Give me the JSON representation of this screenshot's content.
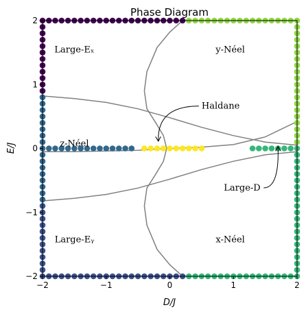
{
  "chart_data": {
    "type": "scatter",
    "title": "Phase Diagram",
    "xlabel": "D/J",
    "ylabel": "E/J",
    "xlim": [
      -2,
      2
    ],
    "ylim": [
      -2,
      2
    ],
    "xticks": [
      -2,
      -1,
      0,
      1,
      2
    ],
    "yticks": [
      -2,
      -1,
      0,
      1,
      2
    ],
    "grid": false,
    "region_labels": [
      {
        "text": "Large-Eₓ",
        "x": -1.5,
        "y": 1.5
      },
      {
        "text": "y-Néel",
        "x": 0.95,
        "y": 1.5
      },
      {
        "text": "z-Néel",
        "x": -1.5,
        "y": 0.03
      },
      {
        "text": "Large-Eᵧ",
        "x": -1.5,
        "y": -1.47
      },
      {
        "text": "x-Néel",
        "x": 0.95,
        "y": -1.47
      }
    ],
    "annotations": [
      {
        "text": "Haldane",
        "x": 0.5,
        "y": 0.62,
        "arrow_to": [
          -0.18,
          0.08
        ]
      },
      {
        "text": "Large-D",
        "x": 0.85,
        "y": -0.66,
        "arrow_to": [
          1.7,
          0.0
        ]
      }
    ],
    "boundaries": [
      {
        "points": [
          [
            -2.0,
            0.82
          ],
          [
            -1.5,
            0.78
          ],
          [
            -1.0,
            0.72
          ],
          [
            -0.5,
            0.62
          ],
          [
            0.0,
            0.48
          ],
          [
            0.5,
            0.33
          ],
          [
            1.0,
            0.2
          ],
          [
            1.5,
            0.1
          ],
          [
            2.0,
            0.05
          ]
        ]
      },
      {
        "points": [
          [
            -2.0,
            -0.82
          ],
          [
            -1.5,
            -0.78
          ],
          [
            -1.0,
            -0.72
          ],
          [
            -0.5,
            -0.62
          ],
          [
            0.0,
            -0.48
          ],
          [
            0.5,
            -0.33
          ],
          [
            1.0,
            -0.2
          ],
          [
            1.5,
            -0.1
          ],
          [
            2.0,
            -0.05
          ]
        ]
      },
      {
        "points": [
          [
            -2.0,
            -0.05
          ],
          [
            -1.5,
            -0.05
          ],
          [
            -1.0,
            -0.04
          ],
          [
            -0.5,
            -0.03
          ],
          [
            0.0,
            0.0
          ],
          [
            0.5,
            0.02
          ],
          [
            1.0,
            0.06
          ],
          [
            1.5,
            0.18
          ],
          [
            2.0,
            0.42
          ]
        ]
      },
      {
        "points": [
          [
            0.2,
            2.0
          ],
          [
            0.0,
            1.82
          ],
          [
            -0.2,
            1.58
          ],
          [
            -0.36,
            1.2
          ],
          [
            -0.4,
            0.9
          ],
          [
            -0.36,
            0.62
          ],
          [
            -0.22,
            0.4
          ],
          [
            -0.1,
            0.2
          ],
          [
            -0.05,
            0.0
          ],
          [
            -0.1,
            -0.2
          ],
          [
            -0.22,
            -0.4
          ],
          [
            -0.36,
            -0.62
          ],
          [
            -0.4,
            -0.9
          ],
          [
            -0.36,
            -1.2
          ],
          [
            -0.2,
            -1.58
          ],
          [
            0.0,
            -1.82
          ],
          [
            0.2,
            -2.0
          ]
        ]
      }
    ],
    "series": [
      {
        "color": "#440154",
        "points": [
          [
            -2.0,
            2.0
          ],
          [
            -2.0,
            1.9
          ],
          [
            -2.0,
            1.8
          ],
          [
            -2.0,
            1.7
          ],
          [
            -2.0,
            1.6
          ],
          [
            -2.0,
            1.5
          ],
          [
            -2.0,
            1.4
          ],
          [
            -2.0,
            1.3
          ],
          [
            -2.0,
            1.2
          ],
          [
            -2.0,
            1.1
          ],
          [
            -2.0,
            1.0
          ],
          [
            -2.0,
            0.9
          ],
          [
            -1.9,
            2.0
          ],
          [
            -1.8,
            2.0
          ],
          [
            -1.7,
            2.0
          ],
          [
            -1.6,
            2.0
          ],
          [
            -1.5,
            2.0
          ],
          [
            -1.4,
            2.0
          ],
          [
            -1.3,
            2.0
          ],
          [
            -1.2,
            2.0
          ],
          [
            -1.1,
            2.0
          ],
          [
            -1.0,
            2.0
          ],
          [
            -0.9,
            2.0
          ],
          [
            -0.8,
            2.0
          ],
          [
            -0.7,
            2.0
          ],
          [
            -0.6,
            2.0
          ],
          [
            -0.5,
            2.0
          ],
          [
            -0.4,
            2.0
          ],
          [
            -0.3,
            2.0
          ],
          [
            -0.2,
            2.0
          ],
          [
            -0.1,
            2.0
          ],
          [
            0.0,
            2.0
          ],
          [
            0.1,
            2.0
          ],
          [
            0.2,
            2.0
          ]
        ]
      },
      {
        "color": "#3b528b",
        "points": [
          [
            -2.0,
            -0.9
          ],
          [
            -2.0,
            -1.0
          ],
          [
            -2.0,
            -1.1
          ],
          [
            -2.0,
            -1.2
          ],
          [
            -2.0,
            -1.3
          ],
          [
            -2.0,
            -1.4
          ],
          [
            -2.0,
            -1.5
          ],
          [
            -2.0,
            -1.6
          ],
          [
            -2.0,
            -1.7
          ],
          [
            -2.0,
            -1.8
          ],
          [
            -2.0,
            -1.9
          ],
          [
            -2.0,
            -2.0
          ],
          [
            -1.9,
            -2.0
          ],
          [
            -1.8,
            -2.0
          ],
          [
            -1.7,
            -2.0
          ],
          [
            -1.6,
            -2.0
          ],
          [
            -1.5,
            -2.0
          ],
          [
            -1.4,
            -2.0
          ],
          [
            -1.3,
            -2.0
          ],
          [
            -1.2,
            -2.0
          ],
          [
            -1.1,
            -2.0
          ],
          [
            -1.0,
            -2.0
          ],
          [
            -0.9,
            -2.0
          ],
          [
            -0.8,
            -2.0
          ],
          [
            -0.7,
            -2.0
          ],
          [
            -0.6,
            -2.0
          ],
          [
            -0.5,
            -2.0
          ],
          [
            -0.4,
            -2.0
          ],
          [
            -0.3,
            -2.0
          ],
          [
            -0.2,
            -2.0
          ],
          [
            -0.1,
            -2.0
          ],
          [
            0.0,
            -2.0
          ],
          [
            0.1,
            -2.0
          ],
          [
            0.2,
            -2.0
          ]
        ]
      },
      {
        "color": "#31688e",
        "points": [
          [
            -2.0,
            0.8
          ],
          [
            -2.0,
            0.7
          ],
          [
            -2.0,
            0.6
          ],
          [
            -2.0,
            0.5
          ],
          [
            -2.0,
            0.4
          ],
          [
            -2.0,
            0.3
          ],
          [
            -2.0,
            0.2
          ],
          [
            -2.0,
            0.1
          ],
          [
            -2.0,
            0.0
          ],
          [
            -2.0,
            -0.1
          ],
          [
            -2.0,
            -0.2
          ],
          [
            -2.0,
            -0.3
          ],
          [
            -2.0,
            -0.4
          ],
          [
            -2.0,
            -0.5
          ],
          [
            -2.0,
            -0.6
          ],
          [
            -2.0,
            -0.7
          ],
          [
            -2.0,
            -0.8
          ],
          [
            -1.9,
            0.0
          ],
          [
            -1.8,
            0.0
          ],
          [
            -1.7,
            0.0
          ],
          [
            -1.6,
            0.0
          ],
          [
            -1.5,
            0.0
          ],
          [
            -1.4,
            0.0
          ],
          [
            -1.3,
            0.0
          ],
          [
            -1.2,
            0.0
          ],
          [
            -1.1,
            0.0
          ],
          [
            -1.0,
            0.0
          ],
          [
            -0.9,
            0.0
          ],
          [
            -0.8,
            0.0
          ],
          [
            -0.7,
            0.0
          ],
          [
            -0.6,
            0.0
          ]
        ]
      },
      {
        "color": "#fde725",
        "points": [
          [
            -0.4,
            0.0
          ],
          [
            -0.3,
            0.0
          ],
          [
            -0.2,
            0.0
          ],
          [
            -0.1,
            0.0
          ],
          [
            0.0,
            0.0
          ],
          [
            0.1,
            0.0
          ],
          [
            0.2,
            0.0
          ],
          [
            0.3,
            0.0
          ],
          [
            0.4,
            0.0
          ],
          [
            0.5,
            0.0
          ]
        ]
      },
      {
        "color": "#35b779",
        "points": [
          [
            1.3,
            0.0
          ],
          [
            1.4,
            0.0
          ],
          [
            1.5,
            0.0
          ],
          [
            1.6,
            0.0
          ],
          [
            1.7,
            0.0
          ],
          [
            1.8,
            0.0
          ],
          [
            1.9,
            0.0
          ],
          [
            2.0,
            0.0
          ],
          [
            2.0,
            -0.1
          ],
          [
            2.0,
            -0.2
          ],
          [
            2.0,
            -0.3
          ],
          [
            2.0,
            -0.4
          ],
          [
            2.0,
            -0.5
          ],
          [
            2.0,
            -0.6
          ],
          [
            2.0,
            -0.7
          ],
          [
            2.0,
            -0.8
          ],
          [
            2.0,
            -0.9
          ],
          [
            2.0,
            -1.0
          ],
          [
            2.0,
            -1.1
          ],
          [
            2.0,
            -1.2
          ],
          [
            2.0,
            -1.3
          ],
          [
            2.0,
            -1.4
          ],
          [
            2.0,
            -1.5
          ],
          [
            2.0,
            -1.6
          ],
          [
            2.0,
            -1.7
          ],
          [
            2.0,
            -1.8
          ],
          [
            2.0,
            -1.9
          ],
          [
            2.0,
            -2.0
          ],
          [
            1.9,
            -2.0
          ],
          [
            1.8,
            -2.0
          ],
          [
            1.7,
            -2.0
          ],
          [
            1.6,
            -2.0
          ],
          [
            1.5,
            -2.0
          ],
          [
            1.4,
            -2.0
          ],
          [
            1.3,
            -2.0
          ],
          [
            1.2,
            -2.0
          ],
          [
            1.1,
            -2.0
          ],
          [
            1.0,
            -2.0
          ],
          [
            0.9,
            -2.0
          ],
          [
            0.8,
            -2.0
          ],
          [
            0.7,
            -2.0
          ],
          [
            0.6,
            -2.0
          ],
          [
            0.5,
            -2.0
          ],
          [
            0.4,
            -2.0
          ],
          [
            0.3,
            -2.0
          ]
        ]
      },
      {
        "color": "#8fd744",
        "points": [
          [
            2.0,
            0.1
          ],
          [
            2.0,
            0.2
          ],
          [
            2.0,
            0.3
          ],
          [
            2.0,
            0.4
          ],
          [
            2.0,
            0.5
          ],
          [
            2.0,
            0.6
          ],
          [
            2.0,
            0.7
          ],
          [
            2.0,
            0.8
          ],
          [
            2.0,
            0.9
          ],
          [
            2.0,
            1.0
          ],
          [
            2.0,
            1.1
          ],
          [
            2.0,
            1.2
          ],
          [
            2.0,
            1.3
          ],
          [
            2.0,
            1.4
          ],
          [
            2.0,
            1.5
          ],
          [
            2.0,
            1.6
          ],
          [
            2.0,
            1.7
          ],
          [
            2.0,
            1.8
          ],
          [
            2.0,
            1.9
          ],
          [
            2.0,
            2.0
          ],
          [
            1.9,
            2.0
          ],
          [
            1.8,
            2.0
          ],
          [
            1.7,
            2.0
          ],
          [
            1.6,
            2.0
          ],
          [
            1.5,
            2.0
          ],
          [
            1.4,
            2.0
          ],
          [
            1.3,
            2.0
          ],
          [
            1.2,
            2.0
          ],
          [
            1.1,
            2.0
          ],
          [
            1.0,
            2.0
          ],
          [
            0.9,
            2.0
          ],
          [
            0.8,
            2.0
          ],
          [
            0.7,
            2.0
          ],
          [
            0.6,
            2.0
          ],
          [
            0.5,
            2.0
          ],
          [
            0.4,
            2.0
          ],
          [
            0.3,
            2.0
          ]
        ]
      }
    ],
    "boundary_color": "#808080",
    "axis_color": "#000000"
  }
}
